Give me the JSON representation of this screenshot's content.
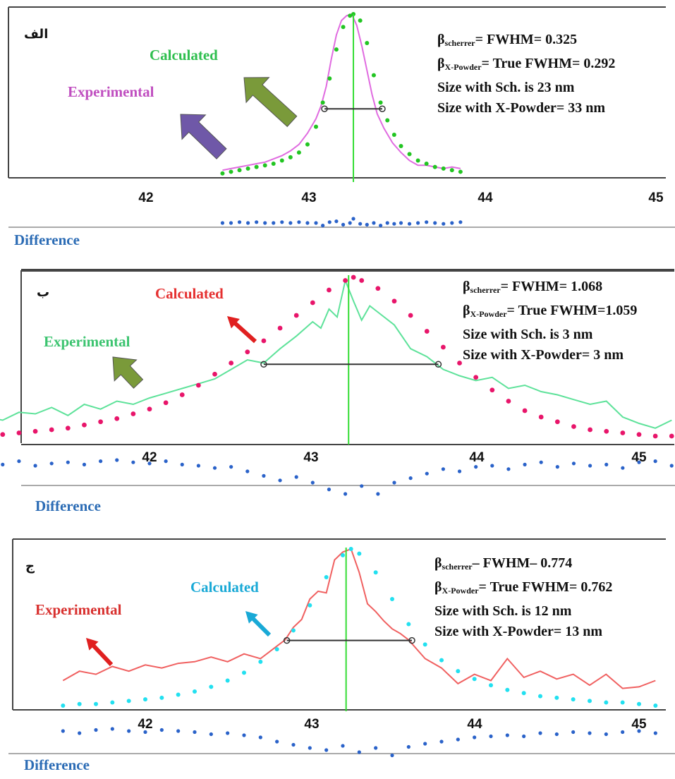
{
  "chart_data": [
    {
      "type": "line",
      "panel_label": "الف",
      "xticks": [
        42,
        43,
        44,
        45
      ],
      "xlim": [
        41.25,
        45.1
      ],
      "peak_position": 43.22,
      "fwhm_marker": [
        43.05,
        43.39
      ],
      "series": [
        {
          "name": "Experimental",
          "color": "#e06be0",
          "style": "line",
          "x": [
            42.45,
            42.5,
            42.55,
            42.6,
            42.65,
            42.7,
            42.75,
            42.8,
            42.85,
            42.9,
            42.95,
            43.0,
            43.03,
            43.06,
            43.09,
            43.12,
            43.15,
            43.18,
            43.21,
            43.24,
            43.27,
            43.3,
            43.33,
            43.36,
            43.4,
            43.45,
            43.5,
            43.55,
            43.6,
            43.65,
            43.7,
            43.75,
            43.8,
            43.85
          ],
          "y": [
            0.03,
            0.04,
            0.05,
            0.06,
            0.07,
            0.08,
            0.1,
            0.12,
            0.15,
            0.19,
            0.26,
            0.35,
            0.43,
            0.55,
            0.72,
            0.87,
            0.96,
            0.99,
            1.0,
            0.93,
            0.8,
            0.65,
            0.5,
            0.38,
            0.29,
            0.2,
            0.14,
            0.09,
            0.06,
            0.06,
            0.05,
            0.04,
            0.05,
            0.04
          ]
        },
        {
          "name": "Calculated",
          "color": "#22c522",
          "style": "dots",
          "x": [
            42.45,
            42.5,
            42.55,
            42.6,
            42.65,
            42.7,
            42.75,
            42.8,
            42.85,
            42.9,
            42.95,
            43.0,
            43.04,
            43.08,
            43.12,
            43.16,
            43.2,
            43.22,
            43.26,
            43.3,
            43.34,
            43.38,
            43.42,
            43.46,
            43.5,
            43.55,
            43.6,
            43.65,
            43.7,
            43.75,
            43.8,
            43.85
          ],
          "y": [
            0.01,
            0.02,
            0.03,
            0.04,
            0.05,
            0.06,
            0.07,
            0.09,
            0.11,
            0.14,
            0.19,
            0.3,
            0.45,
            0.6,
            0.78,
            0.92,
            0.99,
            1.0,
            0.96,
            0.82,
            0.62,
            0.45,
            0.34,
            0.25,
            0.18,
            0.13,
            0.09,
            0.07,
            0.05,
            0.04,
            0.03,
            0.02
          ]
        },
        {
          "name": "Difference",
          "color": "#2a62c9",
          "style": "dots",
          "x": [
            42.45,
            42.5,
            42.55,
            42.6,
            42.65,
            42.7,
            42.75,
            42.8,
            42.85,
            42.9,
            42.95,
            43.0,
            43.04,
            43.08,
            43.12,
            43.16,
            43.2,
            43.22,
            43.26,
            43.3,
            43.34,
            43.38,
            43.42,
            43.46,
            43.5,
            43.55,
            43.6,
            43.65,
            43.7,
            43.75,
            43.8,
            43.85
          ],
          "y": [
            0.0,
            0.0,
            0.01,
            0.0,
            0.01,
            0.0,
            0.0,
            0.01,
            0.0,
            0.01,
            0.0,
            0.0,
            -0.03,
            0.01,
            0.02,
            -0.02,
            0.0,
            0.05,
            -0.01,
            -0.02,
            0.0,
            -0.03,
            0.0,
            -0.01,
            0.0,
            -0.01,
            0.0,
            0.01,
            0.0,
            -0.01,
            0.0,
            0.01
          ]
        }
      ]
    },
    {
      "type": "line",
      "panel_label": "ب",
      "xticks": [
        42,
        43,
        44,
        45
      ],
      "xlim": [
        41.0,
        45.2
      ],
      "peak_position": 43.22,
      "fwhm_marker": [
        42.7,
        43.77
      ],
      "series": [
        {
          "name": "Experimental",
          "color": "#5ee29a",
          "style": "line",
          "x": [
            41.0,
            41.1,
            41.2,
            41.3,
            41.4,
            41.5,
            41.6,
            41.7,
            41.8,
            41.9,
            42.0,
            42.1,
            42.2,
            42.3,
            42.4,
            42.5,
            42.6,
            42.7,
            42.8,
            42.9,
            43.0,
            43.05,
            43.1,
            43.15,
            43.2,
            43.25,
            43.3,
            43.35,
            43.4,
            43.5,
            43.6,
            43.7,
            43.8,
            43.9,
            44.0,
            44.1,
            44.2,
            44.3,
            44.4,
            44.5,
            44.6,
            44.7,
            44.8,
            44.9,
            45.0,
            45.1,
            45.2
          ],
          "y": [
            0.12,
            0.1,
            0.15,
            0.14,
            0.18,
            0.13,
            0.2,
            0.17,
            0.22,
            0.2,
            0.24,
            0.27,
            0.3,
            0.33,
            0.36,
            0.42,
            0.48,
            0.46,
            0.55,
            0.63,
            0.72,
            0.68,
            0.8,
            0.75,
            0.98,
            0.85,
            0.73,
            0.82,
            0.78,
            0.7,
            0.55,
            0.5,
            0.42,
            0.38,
            0.35,
            0.37,
            0.3,
            0.32,
            0.28,
            0.26,
            0.23,
            0.2,
            0.22,
            0.12,
            0.08,
            0.05,
            0.1
          ]
        },
        {
          "name": "Calculated",
          "color": "#e8156a",
          "style": "dots",
          "x": [
            41.0,
            41.1,
            41.2,
            41.3,
            41.4,
            41.5,
            41.6,
            41.7,
            41.8,
            41.9,
            42.0,
            42.1,
            42.2,
            42.3,
            42.4,
            42.5,
            42.6,
            42.7,
            42.8,
            42.9,
            43.0,
            43.1,
            43.2,
            43.25,
            43.3,
            43.4,
            43.5,
            43.6,
            43.7,
            43.8,
            43.9,
            44.0,
            44.1,
            44.2,
            44.3,
            44.4,
            44.5,
            44.6,
            44.7,
            44.8,
            44.9,
            45.0,
            45.1,
            45.2
          ],
          "y": [
            0.0,
            0.01,
            0.02,
            0.03,
            0.04,
            0.05,
            0.07,
            0.09,
            0.11,
            0.14,
            0.17,
            0.21,
            0.26,
            0.32,
            0.39,
            0.46,
            0.53,
            0.6,
            0.68,
            0.76,
            0.84,
            0.92,
            0.98,
            1.0,
            0.98,
            0.93,
            0.85,
            0.76,
            0.66,
            0.56,
            0.46,
            0.37,
            0.29,
            0.22,
            0.16,
            0.12,
            0.09,
            0.06,
            0.04,
            0.03,
            0.02,
            0.01,
            0.0,
            0.0
          ]
        },
        {
          "name": "Difference",
          "color": "#2a62c9",
          "style": "dots",
          "x": [
            41.0,
            41.1,
            41.2,
            41.3,
            41.4,
            41.5,
            41.6,
            41.7,
            41.8,
            41.9,
            42.0,
            42.1,
            42.2,
            42.3,
            42.4,
            42.5,
            42.6,
            42.7,
            42.8,
            42.9,
            43.0,
            43.1,
            43.2,
            43.3,
            43.4,
            43.5,
            43.6,
            43.7,
            43.8,
            43.9,
            44.0,
            44.1,
            44.2,
            44.3,
            44.4,
            44.5,
            44.6,
            44.7,
            44.8,
            44.9,
            45.0,
            45.1,
            45.2
          ],
          "y": [
            0.08,
            0.06,
            0.09,
            0.05,
            0.07,
            0.08,
            0.06,
            0.09,
            0.1,
            0.08,
            0.07,
            0.09,
            0.06,
            0.05,
            0.03,
            0.04,
            0.0,
            -0.04,
            -0.08,
            -0.05,
            -0.1,
            -0.16,
            -0.2,
            -0.13,
            -0.2,
            -0.1,
            -0.06,
            -0.02,
            0.02,
            0.0,
            0.04,
            0.05,
            0.02,
            0.06,
            0.08,
            0.04,
            0.07,
            0.05,
            0.06,
            0.03,
            0.08,
            0.09,
            0.05
          ]
        }
      ]
    },
    {
      "type": "line",
      "panel_label": "ج",
      "xticks": [
        42,
        43,
        44,
        45
      ],
      "xlim": [
        41.15,
        45.25
      ],
      "peak_position": 43.22,
      "fwhm_marker": [
        42.86,
        43.62
      ],
      "series": [
        {
          "name": "Experimental",
          "color": "#f06060",
          "style": "line",
          "x": [
            41.5,
            41.6,
            41.7,
            41.8,
            41.9,
            42.0,
            42.1,
            42.2,
            42.3,
            42.4,
            42.5,
            42.6,
            42.7,
            42.8,
            42.85,
            42.9,
            42.95,
            43.0,
            43.05,
            43.1,
            43.15,
            43.2,
            43.25,
            43.3,
            43.35,
            43.4,
            43.45,
            43.5,
            43.55,
            43.6,
            43.7,
            43.8,
            43.9,
            44.0,
            44.1,
            44.2,
            44.3,
            44.4,
            44.5,
            44.6,
            44.7,
            44.8,
            44.9,
            45.0,
            45.1
          ],
          "y": [
            0.16,
            0.22,
            0.2,
            0.25,
            0.22,
            0.26,
            0.24,
            0.27,
            0.28,
            0.31,
            0.28,
            0.33,
            0.3,
            0.38,
            0.42,
            0.5,
            0.55,
            0.68,
            0.73,
            0.72,
            0.93,
            0.98,
            1.0,
            0.85,
            0.65,
            0.6,
            0.54,
            0.49,
            0.46,
            0.42,
            0.3,
            0.24,
            0.14,
            0.2,
            0.16,
            0.3,
            0.18,
            0.22,
            0.17,
            0.2,
            0.13,
            0.2,
            0.11,
            0.12,
            0.16
          ]
        },
        {
          "name": "Calculated",
          "color": "#22e0f0",
          "style": "dots",
          "x": [
            41.5,
            41.6,
            41.7,
            41.8,
            41.9,
            42.0,
            42.1,
            42.2,
            42.3,
            42.4,
            42.5,
            42.6,
            42.7,
            42.8,
            42.9,
            43.0,
            43.1,
            43.2,
            43.25,
            43.3,
            43.4,
            43.5,
            43.6,
            43.7,
            43.8,
            43.9,
            44.0,
            44.1,
            44.2,
            44.3,
            44.4,
            44.5,
            44.6,
            44.7,
            44.8,
            44.9,
            45.0,
            45.1
          ],
          "y": [
            0.0,
            0.01,
            0.01,
            0.02,
            0.03,
            0.04,
            0.05,
            0.07,
            0.09,
            0.12,
            0.16,
            0.21,
            0.28,
            0.36,
            0.48,
            0.64,
            0.82,
            0.96,
            1.0,
            0.97,
            0.85,
            0.68,
            0.52,
            0.39,
            0.29,
            0.22,
            0.17,
            0.13,
            0.1,
            0.08,
            0.06,
            0.05,
            0.04,
            0.03,
            0.02,
            0.02,
            0.01,
            0.0
          ]
        },
        {
          "name": "Difference",
          "color": "#2a62c9",
          "style": "dots",
          "x": [
            41.5,
            41.6,
            41.7,
            41.8,
            41.9,
            42.0,
            42.1,
            42.2,
            42.3,
            42.4,
            42.5,
            42.6,
            42.7,
            42.8,
            42.9,
            43.0,
            43.1,
            43.2,
            43.3,
            43.4,
            43.5,
            43.6,
            43.7,
            43.8,
            43.9,
            44.0,
            44.1,
            44.2,
            44.3,
            44.4,
            44.5,
            44.6,
            44.7,
            44.8,
            44.9,
            45.0,
            45.1
          ],
          "y": [
            0.08,
            0.06,
            0.09,
            0.1,
            0.08,
            0.07,
            0.09,
            0.08,
            0.07,
            0.05,
            0.06,
            0.04,
            0.02,
            -0.02,
            -0.05,
            -0.08,
            -0.1,
            -0.06,
            -0.12,
            -0.08,
            -0.15,
            -0.07,
            -0.04,
            -0.02,
            0.0,
            0.02,
            0.03,
            0.04,
            0.03,
            0.06,
            0.05,
            0.07,
            0.06,
            0.05,
            0.07,
            0.08,
            0.06
          ]
        }
      ]
    }
  ],
  "panels": [
    {
      "corner_label": "الف",
      "legend_calculated": "Calculated",
      "legend_experimental": "Experimental",
      "difference_label": "Difference",
      "calc_color": "#2fbf4f",
      "exp_color": "#c04fc0",
      "info": {
        "l1_beta": "β",
        "l1_sub": "scherrer",
        "l1_text": "= FWHM= 0.325",
        "l2_beta": "β",
        "l2_sub": "X-Powder",
        "l2_text": "= True FWHM= 0.292",
        "l3": "Size with Sch. is 23 nm",
        "l4": "Size with X-Powder= 33 nm"
      }
    },
    {
      "corner_label": "ب",
      "legend_calculated": "Calculated",
      "legend_experimental": "Experimental",
      "difference_label": "Difference",
      "calc_color": "#e53030",
      "exp_color": "#3cc470",
      "info": {
        "l1_beta": "β",
        "l1_sub": "scherrer",
        "l1_text": "= FWHM= 1.068",
        "l2_beta": "β",
        "l2_sub": "X-Powder",
        "l2_text": "= True FWHM=1.059",
        "l3": "Size with Sch. is 3 nm",
        "l4": "Size with X-Powder= 3 nm"
      }
    },
    {
      "corner_label": "ج",
      "legend_calculated": "Calculated",
      "legend_experimental": "Experimental",
      "difference_label": "Difference",
      "calc_color": "#19a9d6",
      "exp_color": "#d8302e",
      "info": {
        "l1_beta": "β",
        "l1_sub": "scherrer",
        "l1_text": "– FWHM– 0.774",
        "l2_beta": "β",
        "l2_sub": "X-Powder",
        "l2_text": "= True FWHM= 0.762",
        "l3": "Size with Sch. is 12 nm",
        "l4": "Size with X-Powder= 13 nm"
      }
    }
  ],
  "arrow_colors": [
    "#7a9a3a",
    "#6f58a8",
    "#e02020",
    "#7a9a3a",
    "#19a9d6",
    "#e02020"
  ]
}
